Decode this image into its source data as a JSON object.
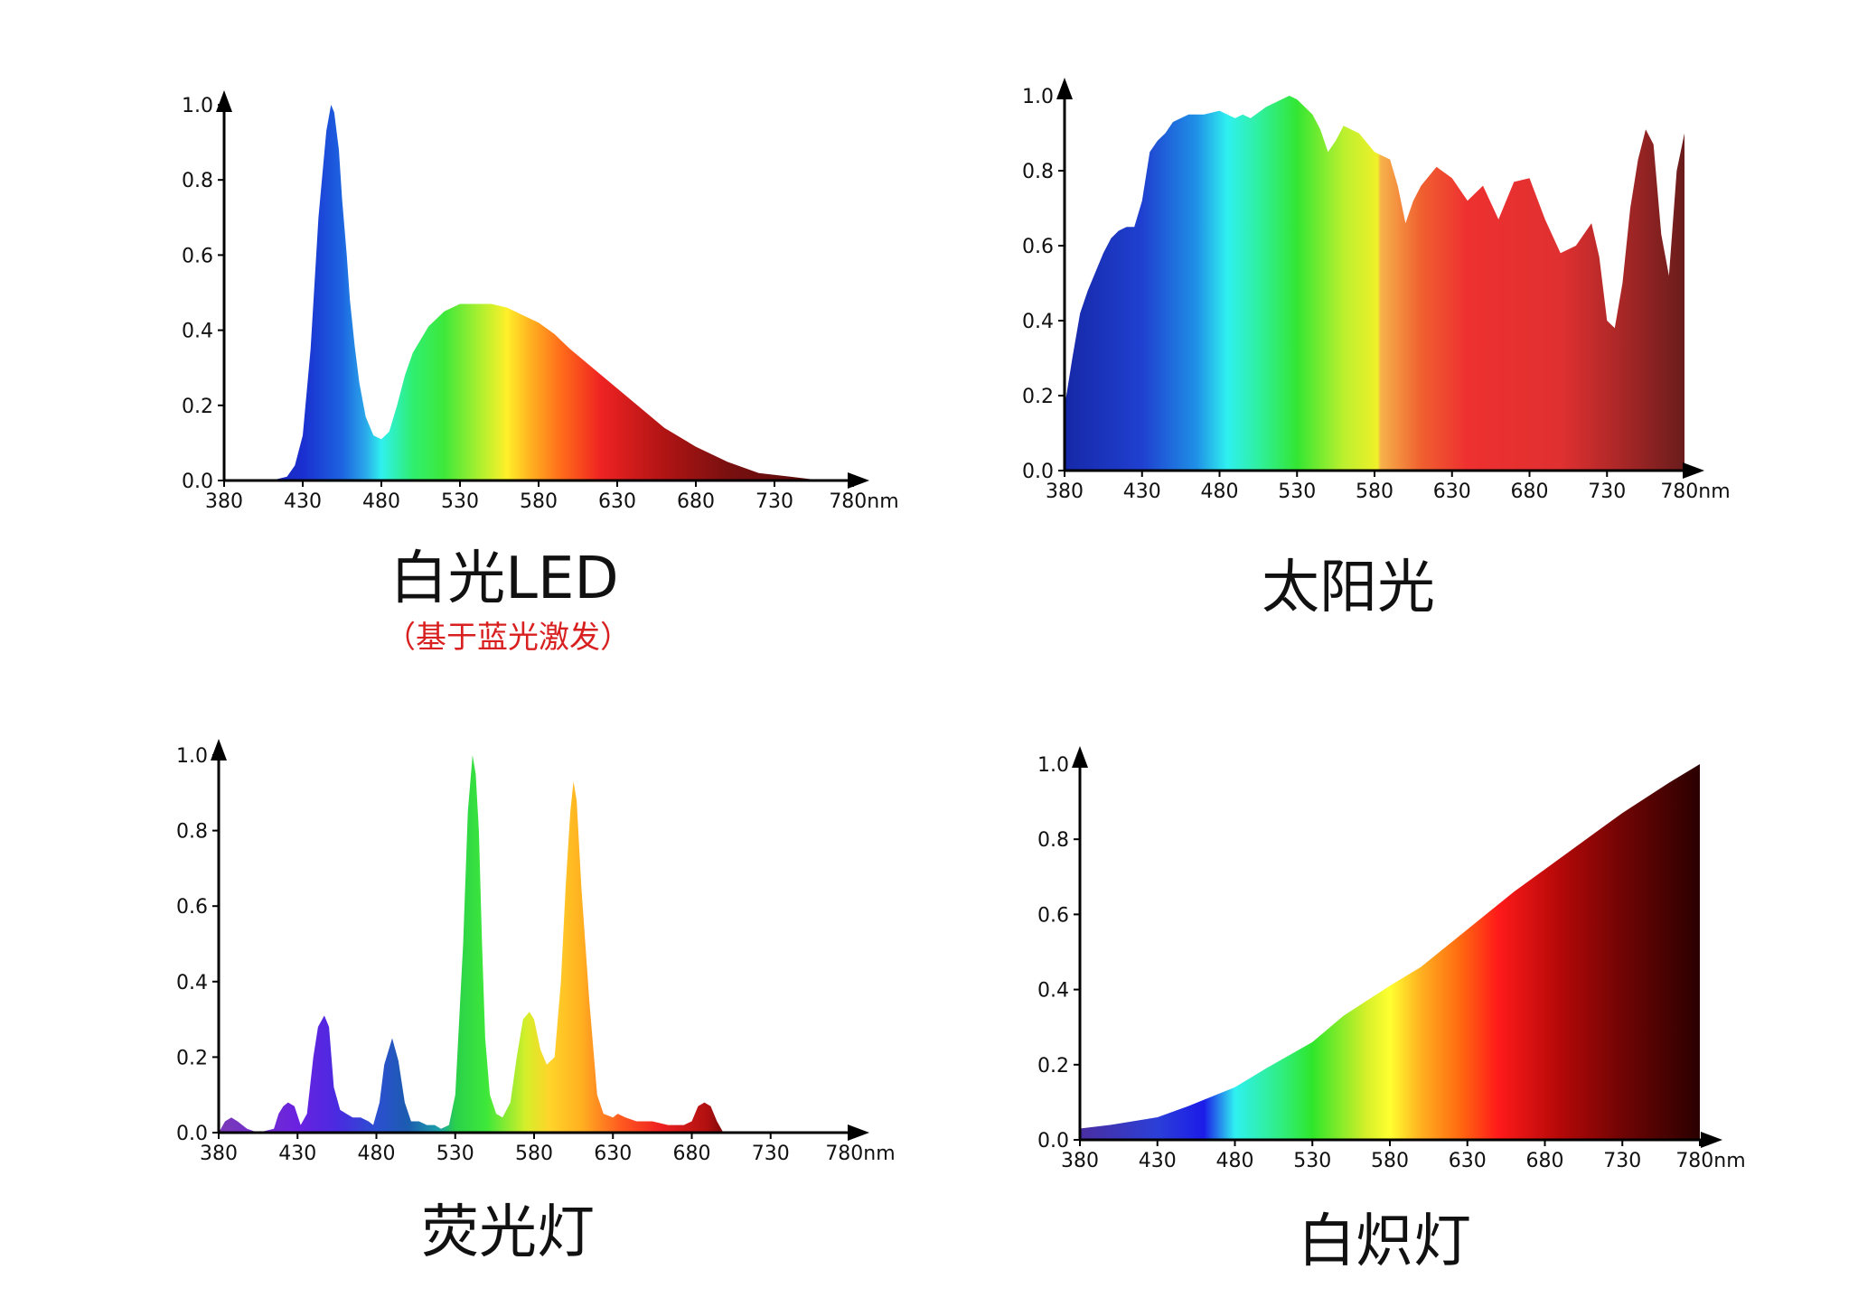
{
  "chart_data": [
    {
      "type": "area",
      "title": "白光LED",
      "subtitle": "（基于蓝光激发）",
      "x_ticks": [
        "380",
        "430",
        "480",
        "530",
        "580",
        "630",
        "680",
        "730",
        "780nm"
      ],
      "y_ticks": [
        "0.0",
        "0.2",
        "0.4",
        "0.6",
        "0.8",
        "1.0"
      ],
      "xlim": [
        380,
        780
      ],
      "ylim": [
        0,
        1.0
      ],
      "x": [
        380,
        400,
        410,
        420,
        425,
        430,
        435,
        440,
        445,
        448,
        450,
        453,
        455,
        458,
        460,
        463,
        466,
        470,
        475,
        480,
        485,
        490,
        495,
        500,
        510,
        520,
        530,
        540,
        550,
        560,
        570,
        580,
        590,
        600,
        620,
        640,
        660,
        680,
        700,
        720,
        740,
        760,
        780
      ],
      "y": [
        0.0,
        0.0,
        0.0,
        0.01,
        0.04,
        0.12,
        0.35,
        0.7,
        0.93,
        1.0,
        0.98,
        0.88,
        0.75,
        0.6,
        0.48,
        0.36,
        0.26,
        0.17,
        0.12,
        0.11,
        0.13,
        0.2,
        0.28,
        0.34,
        0.41,
        0.45,
        0.47,
        0.47,
        0.47,
        0.46,
        0.44,
        0.42,
        0.39,
        0.35,
        0.28,
        0.21,
        0.14,
        0.09,
        0.05,
        0.02,
        0.01,
        0.0,
        0.0
      ],
      "gradient": "led",
      "grid": false,
      "legend": "none"
    },
    {
      "type": "area",
      "title": "太阳光",
      "x_ticks": [
        "380",
        "430",
        "480",
        "530",
        "580",
        "630",
        "680",
        "730",
        "780nm"
      ],
      "y_ticks": [
        "0.0",
        "0.2",
        "0.4",
        "0.6",
        "0.8",
        "1.0"
      ],
      "xlim": [
        380,
        780
      ],
      "ylim": [
        0,
        1.0
      ],
      "x": [
        380,
        385,
        390,
        395,
        400,
        405,
        410,
        415,
        420,
        425,
        430,
        435,
        440,
        445,
        450,
        455,
        460,
        470,
        480,
        490,
        495,
        500,
        510,
        520,
        525,
        530,
        535,
        540,
        545,
        550,
        555,
        560,
        570,
        580,
        590,
        595,
        600,
        605,
        610,
        620,
        630,
        640,
        650,
        660,
        670,
        680,
        690,
        700,
        710,
        720,
        725,
        730,
        735,
        740,
        745,
        750,
        755,
        760,
        765,
        770,
        775,
        780
      ],
      "y": [
        0.17,
        0.3,
        0.42,
        0.48,
        0.53,
        0.58,
        0.62,
        0.64,
        0.65,
        0.65,
        0.72,
        0.85,
        0.88,
        0.9,
        0.93,
        0.94,
        0.95,
        0.95,
        0.96,
        0.94,
        0.95,
        0.94,
        0.97,
        0.99,
        1.0,
        0.99,
        0.97,
        0.95,
        0.91,
        0.85,
        0.88,
        0.92,
        0.9,
        0.85,
        0.83,
        0.76,
        0.66,
        0.72,
        0.76,
        0.81,
        0.78,
        0.72,
        0.76,
        0.67,
        0.77,
        0.78,
        0.67,
        0.58,
        0.6,
        0.66,
        0.57,
        0.4,
        0.38,
        0.5,
        0.7,
        0.83,
        0.91,
        0.87,
        0.63,
        0.52,
        0.8,
        0.9
      ],
      "gradient": "sun",
      "grid": false,
      "legend": "none"
    },
    {
      "type": "area",
      "title": "荧光灯",
      "x_ticks": [
        "380",
        "430",
        "480",
        "530",
        "580",
        "630",
        "680",
        "730",
        "780nm"
      ],
      "y_ticks": [
        "0.0",
        "0.2",
        "0.4",
        "0.6",
        "0.8",
        "1.0"
      ],
      "xlim": [
        380,
        780
      ],
      "ylim": [
        0,
        1.0
      ],
      "x": [
        380,
        384,
        388,
        392,
        398,
        405,
        415,
        418,
        421,
        424,
        428,
        432,
        436,
        440,
        443,
        447,
        450,
        453,
        457,
        461,
        465,
        470,
        475,
        478,
        482,
        485,
        490,
        494,
        498,
        502,
        507,
        512,
        517,
        521,
        526,
        530,
        535,
        538,
        541,
        543,
        545,
        547,
        549,
        552,
        556,
        560,
        565,
        569,
        573,
        577,
        580,
        584,
        588,
        593,
        597,
        600,
        603,
        605,
        607,
        610,
        615,
        620,
        624,
        630,
        633,
        638,
        645,
        655,
        665,
        670,
        675,
        680,
        684,
        688,
        692,
        696,
        700,
        705,
        780
      ],
      "y": [
        0.0,
        0.03,
        0.04,
        0.03,
        0.01,
        0.0,
        0.01,
        0.05,
        0.07,
        0.08,
        0.07,
        0.02,
        0.05,
        0.2,
        0.28,
        0.31,
        0.28,
        0.12,
        0.06,
        0.05,
        0.04,
        0.04,
        0.03,
        0.02,
        0.08,
        0.18,
        0.25,
        0.19,
        0.08,
        0.03,
        0.03,
        0.02,
        0.02,
        0.01,
        0.02,
        0.1,
        0.5,
        0.85,
        1.0,
        0.95,
        0.8,
        0.5,
        0.25,
        0.1,
        0.05,
        0.04,
        0.08,
        0.2,
        0.3,
        0.32,
        0.3,
        0.22,
        0.18,
        0.2,
        0.4,
        0.65,
        0.85,
        0.93,
        0.88,
        0.65,
        0.35,
        0.1,
        0.05,
        0.04,
        0.05,
        0.04,
        0.03,
        0.03,
        0.02,
        0.02,
        0.02,
        0.03,
        0.07,
        0.08,
        0.07,
        0.03,
        0.0,
        0.0,
        0.0
      ],
      "gradient": "fluor",
      "grid": false,
      "legend": "none"
    },
    {
      "type": "area",
      "title": "白炽灯",
      "x_ticks": [
        "380",
        "430",
        "480",
        "530",
        "580",
        "630",
        "680",
        "730",
        "780nm"
      ],
      "y_ticks": [
        "0.0",
        "0.2",
        "0.4",
        "0.6",
        "0.8",
        "1.0"
      ],
      "xlim": [
        380,
        780
      ],
      "ylim": [
        0,
        1.0
      ],
      "x": [
        380,
        400,
        430,
        450,
        480,
        500,
        530,
        550,
        580,
        600,
        630,
        660,
        680,
        700,
        730,
        760,
        780
      ],
      "y": [
        0.03,
        0.04,
        0.06,
        0.09,
        0.14,
        0.19,
        0.26,
        0.33,
        0.41,
        0.46,
        0.56,
        0.66,
        0.72,
        0.78,
        0.87,
        0.95,
        1.0
      ],
      "gradient": "incand",
      "grid": false,
      "legend": "none"
    }
  ],
  "gradients": {
    "led": [
      [
        "380",
        "#1a1a99"
      ],
      [
        "430",
        "#1a2fd0"
      ],
      [
        "455",
        "#1d63e0"
      ],
      [
        "470",
        "#2aa8ea"
      ],
      [
        "480",
        "#2ff0ee"
      ],
      [
        "500",
        "#2fef70"
      ],
      [
        "520",
        "#3ee83a"
      ],
      [
        "545",
        "#b8f02e"
      ],
      [
        "560",
        "#ffef2a"
      ],
      [
        "575",
        "#ffb020"
      ],
      [
        "595",
        "#ff6a1a"
      ],
      [
        "620",
        "#ee2222"
      ],
      [
        "660",
        "#b01414"
      ],
      [
        "700",
        "#7a1010"
      ],
      [
        "780",
        "#4a0808"
      ]
    ],
    "sun": [
      [
        "380",
        "#1628a8"
      ],
      [
        "430",
        "#1f40d0"
      ],
      [
        "465",
        "#1f8fe6"
      ],
      [
        "485",
        "#2ff0f0"
      ],
      [
        "505",
        "#2ff0a0"
      ],
      [
        "530",
        "#33e633"
      ],
      [
        "560",
        "#bbf02e"
      ],
      [
        "582",
        "#f0f02a"
      ],
      [
        "584",
        "#f6b24a"
      ],
      [
        "610",
        "#f06030"
      ],
      [
        "640",
        "#ee3030"
      ],
      [
        "700",
        "#e03030"
      ],
      [
        "735",
        "#b02828"
      ],
      [
        "780",
        "#6a1c1c"
      ]
    ],
    "fluor": [
      [
        "380",
        "#7a3ab8"
      ],
      [
        "430",
        "#6a22e0"
      ],
      [
        "455",
        "#4a2ae0"
      ],
      [
        "480",
        "#2b4fd0"
      ],
      [
        "500",
        "#1c5cb0"
      ],
      [
        "520",
        "#1ca0a8"
      ],
      [
        "530",
        "#2ad04a"
      ],
      [
        "550",
        "#3ee83a"
      ],
      [
        "575",
        "#d6ee2a"
      ],
      [
        "590",
        "#ffd42a"
      ],
      [
        "610",
        "#ffb020"
      ],
      [
        "635",
        "#ff5a20"
      ],
      [
        "660",
        "#ee2020"
      ],
      [
        "690",
        "#b01010"
      ],
      [
        "700",
        "#800808"
      ],
      [
        "780",
        "#600606"
      ]
    ],
    "incand": [
      [
        "380",
        "#4a2ea0"
      ],
      [
        "430",
        "#2b3fd8"
      ],
      [
        "460",
        "#1c1ce8"
      ],
      [
        "480",
        "#2ff0f0"
      ],
      [
        "510",
        "#30ee80"
      ],
      [
        "530",
        "#2fe62a"
      ],
      [
        "565",
        "#d6f02a"
      ],
      [
        "580",
        "#ffff30"
      ],
      [
        "600",
        "#ffb020"
      ],
      [
        "625",
        "#ff6a10"
      ],
      [
        "650",
        "#ff1a1a"
      ],
      [
        "690",
        "#b40808"
      ],
      [
        "730",
        "#700404"
      ],
      [
        "780",
        "#2a0000"
      ]
    ]
  }
}
